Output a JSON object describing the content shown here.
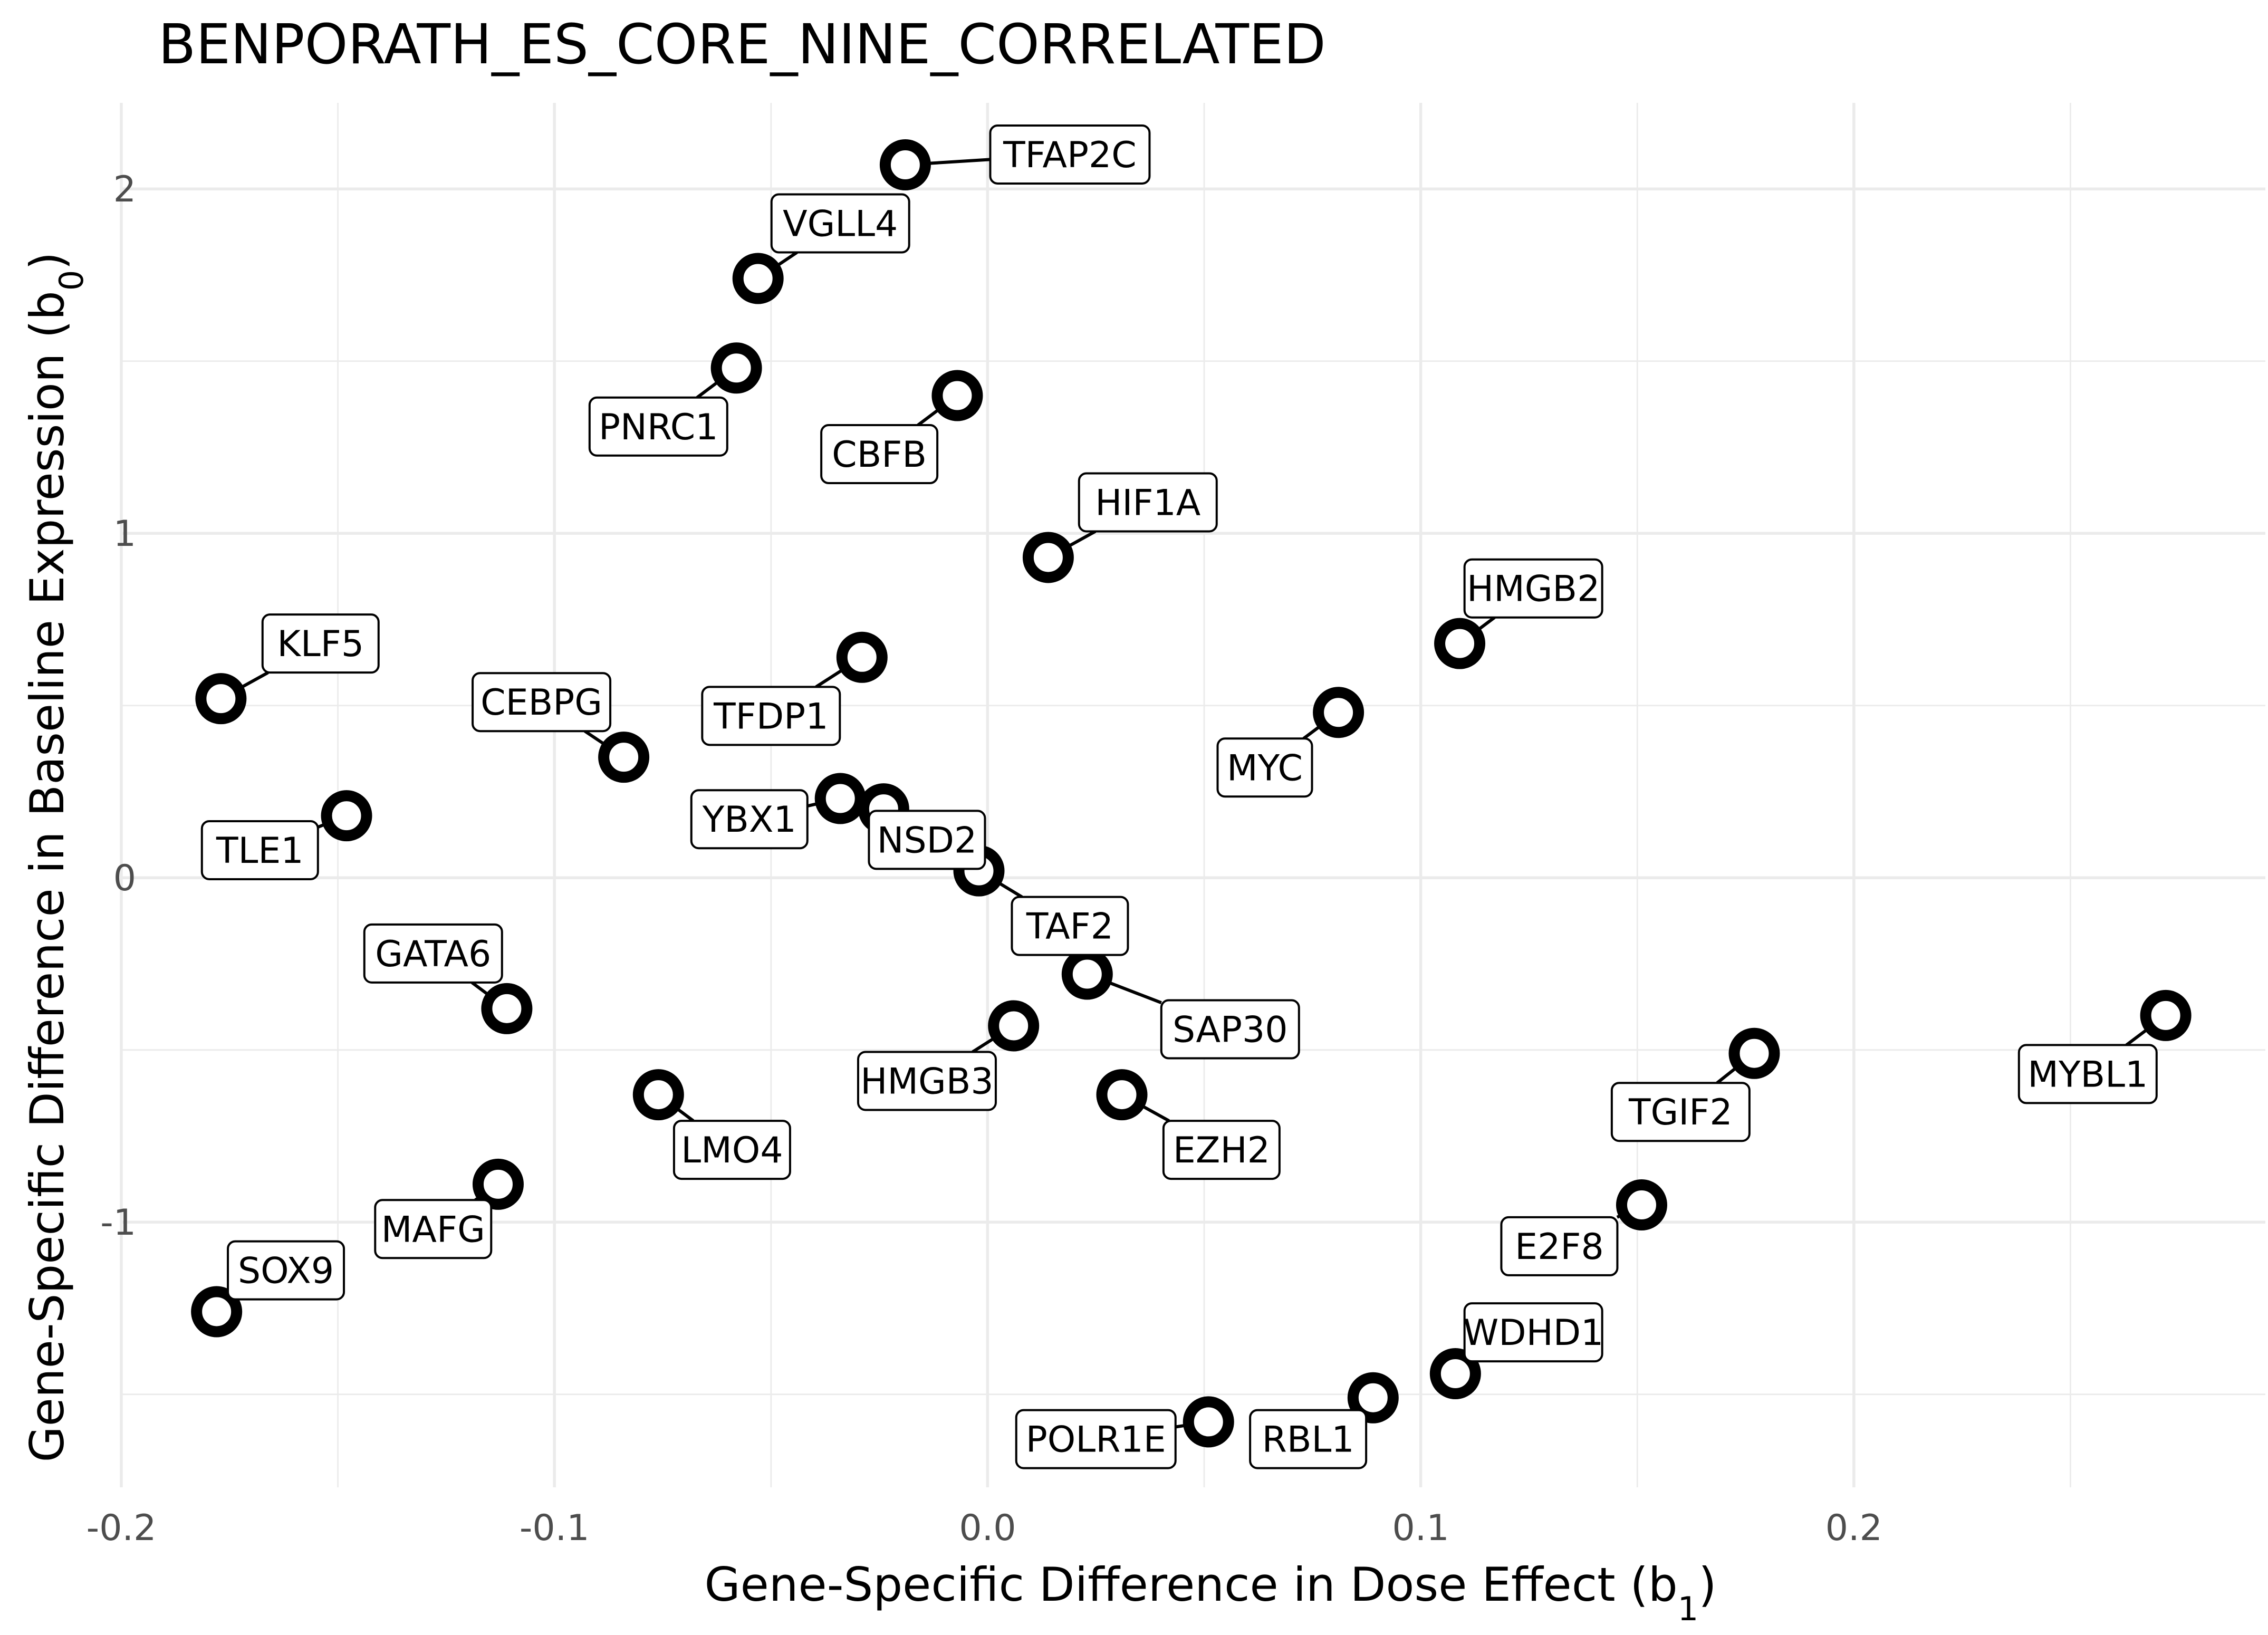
{
  "chart_data": {
    "type": "scatter",
    "title": "BENPORATH_ES_CORE_NINE_CORRELATED",
    "xlabel": {
      "main": "Gene-Specific Difference in Dose Effect (b",
      "sub": "1",
      "end": ")"
    },
    "ylabel": {
      "main": "Gene-Specific Difference in Baseline Expression (b",
      "sub": "0",
      "end": ")"
    },
    "xlim": [
      -0.2,
      0.295
    ],
    "ylim": [
      -1.77,
      2.25
    ],
    "x_ticks": [
      -0.2,
      -0.1,
      0.0,
      0.1,
      0.2
    ],
    "x_tick_labels": [
      "-0.2",
      "-0.1",
      "0.0",
      "0.1",
      "0.2"
    ],
    "y_ticks": [
      -1,
      0,
      1,
      2
    ],
    "y_tick_labels": [
      "-1",
      "0",
      "1",
      "2"
    ],
    "grid": true,
    "points": [
      {
        "label": "TFAP2C",
        "x": -0.019,
        "y": 2.07,
        "lx": 0.019,
        "ly": 2.1
      },
      {
        "label": "VGLL4",
        "x": -0.053,
        "y": 1.74,
        "lx": -0.034,
        "ly": 1.9
      },
      {
        "label": "PNRC1",
        "x": -0.058,
        "y": 1.48,
        "lx": -0.076,
        "ly": 1.31
      },
      {
        "label": "CBFB",
        "x": -0.007,
        "y": 1.4,
        "lx": -0.025,
        "ly": 1.23
      },
      {
        "label": "HIF1A",
        "x": 0.014,
        "y": 0.93,
        "lx": 0.037,
        "ly": 1.09
      },
      {
        "label": "HMGB2",
        "x": 0.109,
        "y": 0.68,
        "lx": 0.126,
        "ly": 0.84
      },
      {
        "label": "KLF5",
        "x": -0.177,
        "y": 0.52,
        "lx": -0.154,
        "ly": 0.68
      },
      {
        "label": "TFDP1",
        "x": -0.029,
        "y": 0.64,
        "lx": -0.05,
        "ly": 0.47
      },
      {
        "label": "MYC",
        "x": 0.081,
        "y": 0.48,
        "lx": 0.064,
        "ly": 0.32
      },
      {
        "label": "CEBPG",
        "x": -0.084,
        "y": 0.35,
        "lx": -0.103,
        "ly": 0.51
      },
      {
        "label": "YBX1",
        "x": -0.034,
        "y": 0.23,
        "lx": -0.055,
        "ly": 0.17
      },
      {
        "label": "NSD2",
        "x": -0.024,
        "y": 0.2,
        "lx": -0.014,
        "ly": 0.11
      },
      {
        "label": "TLE1",
        "x": -0.148,
        "y": 0.18,
        "lx": -0.168,
        "ly": 0.08
      },
      {
        "label": "TAF2",
        "x": -0.002,
        "y": 0.02,
        "lx": 0.019,
        "ly": -0.14
      },
      {
        "label": "GATA6",
        "x": -0.111,
        "y": -0.38,
        "lx": -0.128,
        "ly": -0.22
      },
      {
        "label": "SAP30",
        "x": 0.023,
        "y": -0.28,
        "lx": 0.056,
        "ly": -0.44
      },
      {
        "label": "HMGB3",
        "x": 0.006,
        "y": -0.43,
        "lx": -0.014,
        "ly": -0.59
      },
      {
        "label": "LMO4",
        "x": -0.076,
        "y": -0.63,
        "lx": -0.059,
        "ly": -0.79
      },
      {
        "label": "EZH2",
        "x": 0.031,
        "y": -0.63,
        "lx": 0.054,
        "ly": -0.79
      },
      {
        "label": "MYBL1",
        "x": 0.272,
        "y": -0.4,
        "lx": 0.254,
        "ly": -0.57
      },
      {
        "label": "TGIF2",
        "x": 0.177,
        "y": -0.51,
        "lx": 0.16,
        "ly": -0.68
      },
      {
        "label": "MAFG",
        "x": -0.113,
        "y": -0.89,
        "lx": -0.128,
        "ly": -1.02
      },
      {
        "label": "E2F8",
        "x": 0.151,
        "y": -0.95,
        "lx": 0.132,
        "ly": -1.07
      },
      {
        "label": "SOX9",
        "x": -0.178,
        "y": -1.26,
        "lx": -0.162,
        "ly": -1.14
      },
      {
        "label": "WDHD1",
        "x": 0.108,
        "y": -1.44,
        "lx": 0.126,
        "ly": -1.32
      },
      {
        "label": "RBL1",
        "x": 0.089,
        "y": -1.51,
        "lx": 0.074,
        "ly": -1.63
      },
      {
        "label": "POLR1E",
        "x": 0.051,
        "y": -1.58,
        "lx": 0.025,
        "ly": -1.63
      }
    ]
  }
}
